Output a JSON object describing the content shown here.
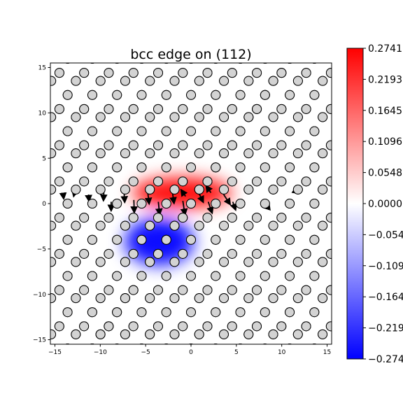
{
  "chart_data": {
    "type": "scatter",
    "title": "bcc edge on (112)",
    "xlabel": "",
    "ylabel": "",
    "xlim": [
      -15.5,
      15.5
    ],
    "ylim": [
      -15.5,
      15.5
    ],
    "xticks": [
      -15,
      -10,
      -5,
      0,
      5,
      10,
      15
    ],
    "yticks": [
      -15,
      -10,
      -5,
      0,
      5,
      10,
      15
    ],
    "grid": false,
    "lattice": {
      "row_spacing_y": 1.33,
      "col_spacing_x": 2.72,
      "row_shift_x": 0.907,
      "row_shift_y_cycle": [
        0,
        0.22,
        -0.22
      ]
    },
    "colorbar": {
      "cmap": "bwr",
      "min": -0.2741,
      "max": 0.2741,
      "ticks": [
        0.2741,
        0.2193,
        0.1645,
        0.1096,
        0.0548,
        0.0,
        -0.0548,
        -0.1096,
        -0.1645,
        -0.2193,
        -0.2741
      ],
      "tick_labels": [
        "0.2741",
        "0.2193",
        "0.1645",
        "0.1096",
        "0.0548",
        "0.0000",
        "−0.0548",
        "−0.1096",
        "−0.1645",
        "−0.2193",
        "−0.2741"
      ]
    },
    "strain_field": [
      {
        "sign": "positive",
        "x": -1,
        "y": 1.2,
        "sx": 5.5,
        "sy": 1.7,
        "amp": 1.0
      },
      {
        "sign": "negative",
        "x": -3.5,
        "y": -4.2,
        "sx": 3.8,
        "sy": 2.6,
        "amp": 1.0
      }
    ],
    "displacement_arrows": [
      {
        "x": -7.4,
        "y": 1.6,
        "dx": 0.2,
        "dy": -3.1
      },
      {
        "x": -6.3,
        "y": 0.4,
        "dx": 0.1,
        "dy": -2.9
      },
      {
        "x": -4.8,
        "y": 1.5,
        "dx": 0.4,
        "dy": -3.3
      },
      {
        "x": -3.6,
        "y": 0.2,
        "dx": 0.3,
        "dy": -3.0
      },
      {
        "x": -2.1,
        "y": 1.6,
        "dx": 0.5,
        "dy": -3.4
      },
      {
        "x": -0.9,
        "y": 0.3,
        "dx": 0.5,
        "dy": -3.3
      },
      {
        "x": 0.7,
        "y": 1.5,
        "dx": 1.4,
        "dy": -2.9
      },
      {
        "x": 1.9,
        "y": 0.2,
        "dx": 0.9,
        "dy": -2.6
      },
      {
        "x": 3.6,
        "y": 1.0,
        "dx": 1.5,
        "dy": -2.3
      },
      {
        "x": 4.6,
        "y": 0.2,
        "dx": 0.6,
        "dy": -1.7
      },
      {
        "x": -0.6,
        "y": 0.8,
        "dx": -0.9,
        "dy": 1.3
      },
      {
        "x": 2.2,
        "y": 1.2,
        "dx": -1.0,
        "dy": 1.4
      },
      {
        "x": -9.6,
        "y": 1.4,
        "dx": -0.1,
        "dy": -2.1
      },
      {
        "x": -8.8,
        "y": 0.2,
        "dx": 0.0,
        "dy": -1.9
      },
      {
        "x": -11.3,
        "y": 1.0,
        "dx": 0.1,
        "dy": -1.2
      },
      {
        "x": -12.8,
        "y": 1.4,
        "dx": -0.2,
        "dy": -0.9
      },
      {
        "x": -14.1,
        "y": 1.1,
        "dx": 0.1,
        "dy": -0.8
      },
      {
        "x": 8.4,
        "y": -0.6,
        "dx": 0.3,
        "dy": 0.9
      },
      {
        "x": 11.5,
        "y": 1.3,
        "dx": 0.1,
        "dy": 0.6
      }
    ]
  }
}
